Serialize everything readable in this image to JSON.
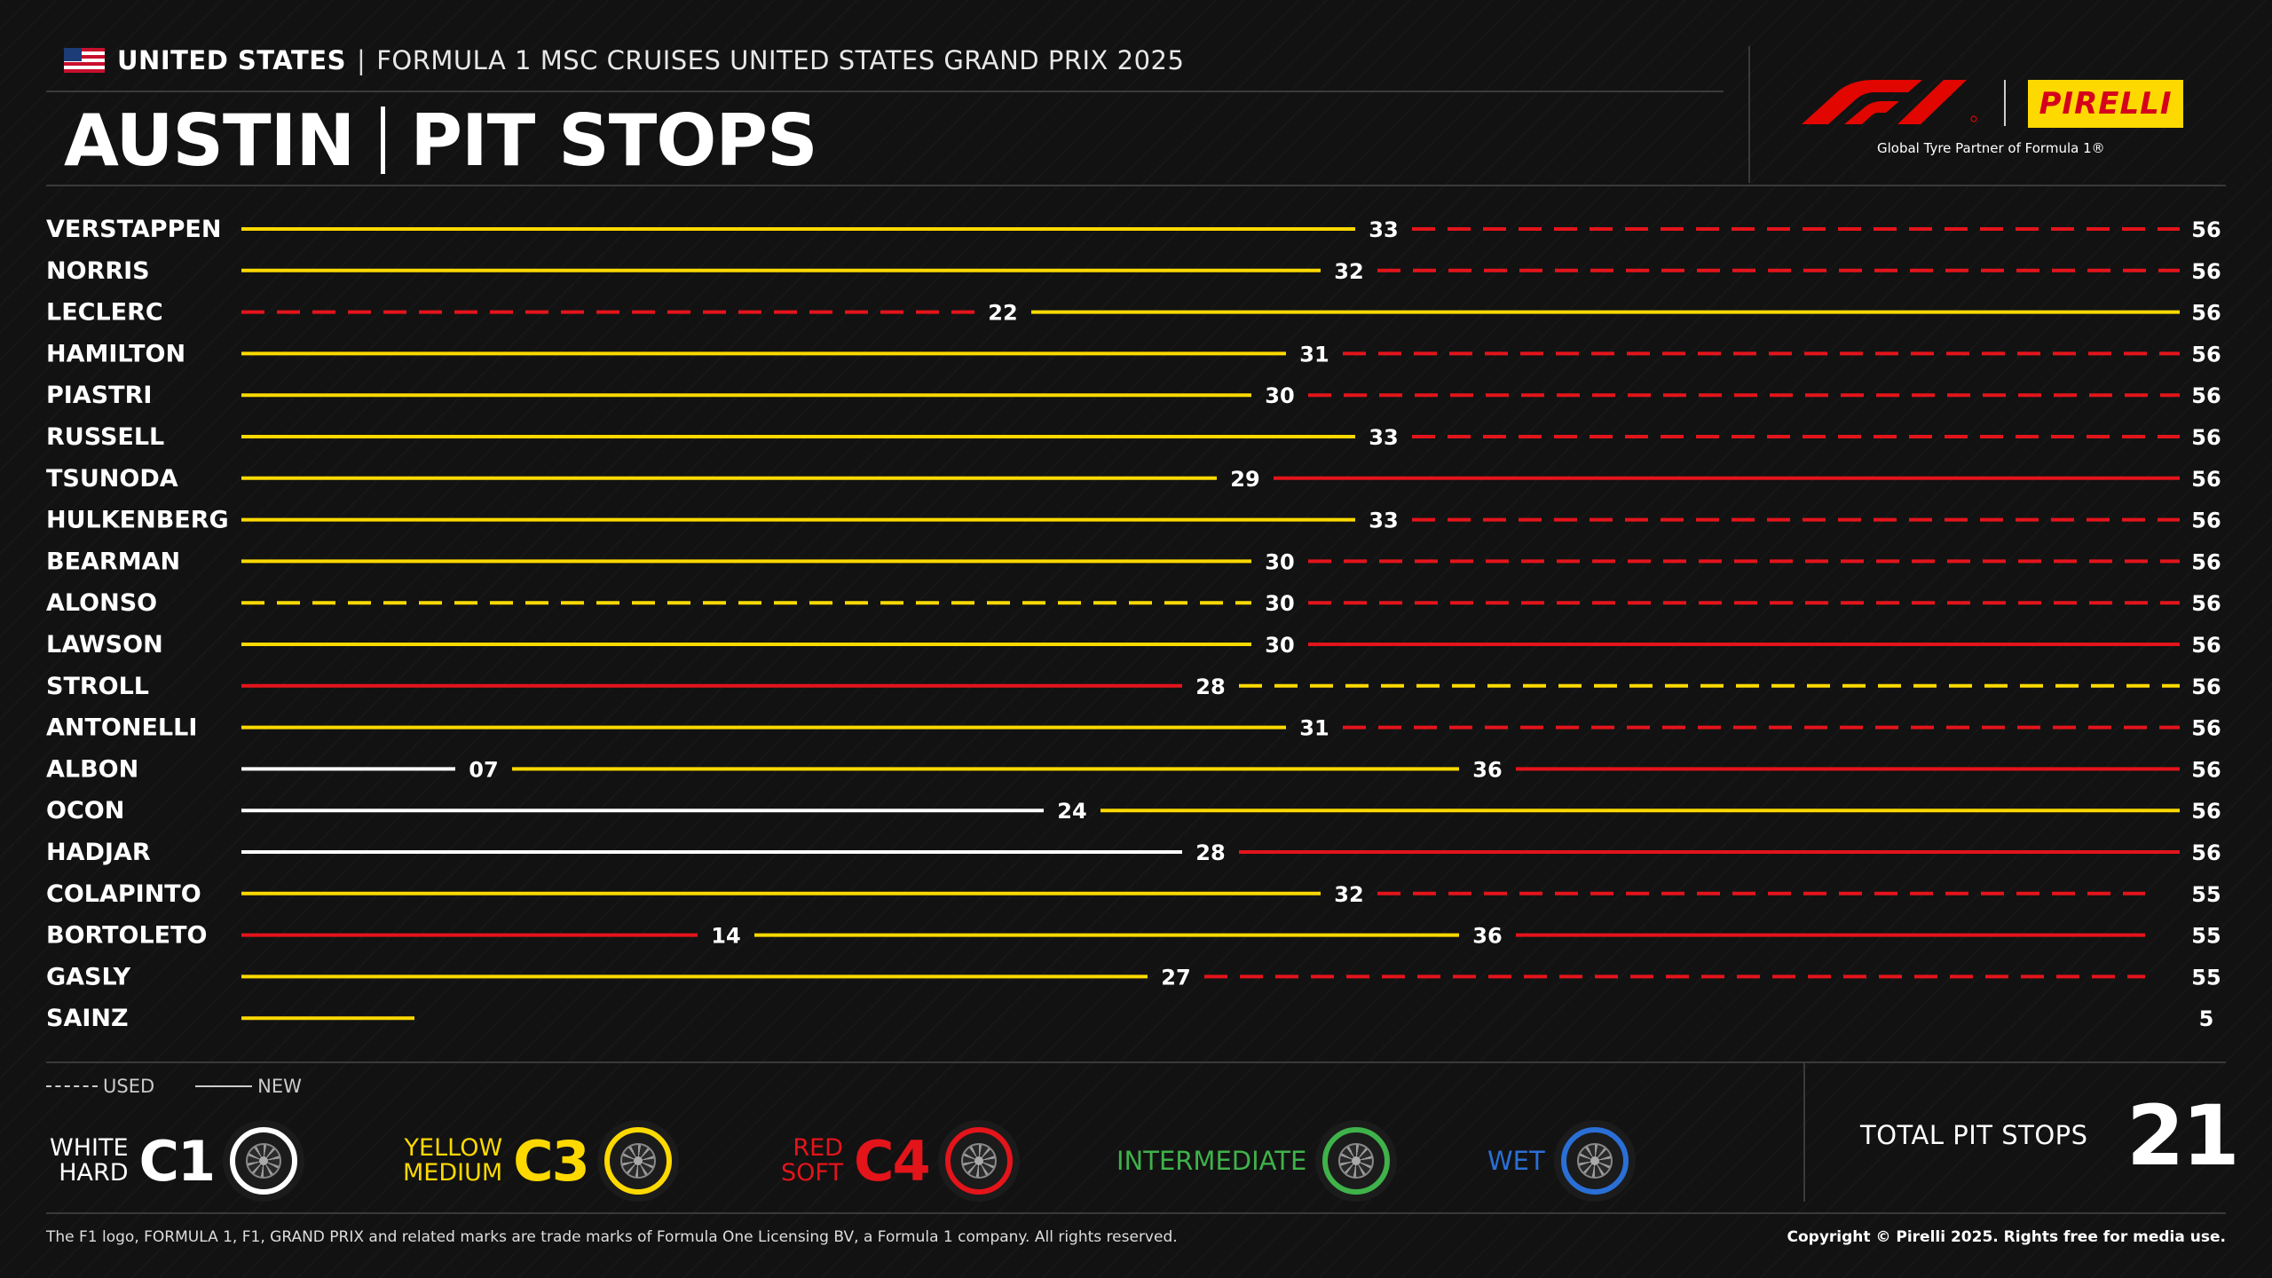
{
  "header": {
    "country": "UNITED STATES",
    "separator": "|",
    "event": "FORMULA 1 MSC CRUISES UNITED STATES GRAND PRIX 2025",
    "title_left": "AUSTIN",
    "title_right": "PIT STOPS"
  },
  "brand": {
    "pirelli": "PIRELLI",
    "tagline": "Global Tyre Partner of Formula 1®"
  },
  "colors": {
    "hard": "#ffffff",
    "medium": "#fdd900",
    "soft": "#e4141b",
    "intermediate": "#3fb24a",
    "wet": "#2a6fd6",
    "f1_red": "#e10600"
  },
  "chart_data": {
    "type": "bar",
    "title": "PIT STOPS",
    "x_range": [
      0,
      56
    ],
    "compound_colors": {
      "hard": "#ffffff",
      "medium": "#fdd900",
      "soft": "#e4141b"
    },
    "drivers": [
      {
        "name": "VERSTAPPEN",
        "stints": [
          {
            "compound": "medium",
            "used": false,
            "end": 33,
            "label": "33"
          },
          {
            "compound": "soft",
            "used": true,
            "end": 56,
            "label": "56"
          }
        ]
      },
      {
        "name": "NORRIS",
        "stints": [
          {
            "compound": "medium",
            "used": false,
            "end": 32,
            "label": "32"
          },
          {
            "compound": "soft",
            "used": true,
            "end": 56,
            "label": "56"
          }
        ]
      },
      {
        "name": "LECLERC",
        "stints": [
          {
            "compound": "soft",
            "used": true,
            "end": 22,
            "label": "22"
          },
          {
            "compound": "medium",
            "used": false,
            "end": 56,
            "label": "56"
          }
        ]
      },
      {
        "name": "HAMILTON",
        "stints": [
          {
            "compound": "medium",
            "used": false,
            "end": 31,
            "label": "31"
          },
          {
            "compound": "soft",
            "used": true,
            "end": 56,
            "label": "56"
          }
        ]
      },
      {
        "name": "PIASTRI",
        "stints": [
          {
            "compound": "medium",
            "used": false,
            "end": 30,
            "label": "30"
          },
          {
            "compound": "soft",
            "used": true,
            "end": 56,
            "label": "56"
          }
        ]
      },
      {
        "name": "RUSSELL",
        "stints": [
          {
            "compound": "medium",
            "used": false,
            "end": 33,
            "label": "33"
          },
          {
            "compound": "soft",
            "used": true,
            "end": 56,
            "label": "56"
          }
        ]
      },
      {
        "name": "TSUNODA",
        "stints": [
          {
            "compound": "medium",
            "used": false,
            "end": 29,
            "label": "29"
          },
          {
            "compound": "soft",
            "used": false,
            "end": 56,
            "label": "56"
          }
        ]
      },
      {
        "name": "HULKENBERG",
        "stints": [
          {
            "compound": "medium",
            "used": false,
            "end": 33,
            "label": "33"
          },
          {
            "compound": "soft",
            "used": true,
            "end": 56,
            "label": "56"
          }
        ]
      },
      {
        "name": "BEARMAN",
        "stints": [
          {
            "compound": "medium",
            "used": false,
            "end": 30,
            "label": "30"
          },
          {
            "compound": "soft",
            "used": true,
            "end": 56,
            "label": "56"
          }
        ]
      },
      {
        "name": "ALONSO",
        "stints": [
          {
            "compound": "medium",
            "used": true,
            "end": 30,
            "label": "30"
          },
          {
            "compound": "soft",
            "used": true,
            "end": 56,
            "label": "56"
          }
        ]
      },
      {
        "name": "LAWSON",
        "stints": [
          {
            "compound": "medium",
            "used": false,
            "end": 30,
            "label": "30"
          },
          {
            "compound": "soft",
            "used": false,
            "end": 56,
            "label": "56"
          }
        ]
      },
      {
        "name": "STROLL",
        "stints": [
          {
            "compound": "soft",
            "used": false,
            "end": 28,
            "label": "28"
          },
          {
            "compound": "medium",
            "used": true,
            "end": 56,
            "label": "56"
          }
        ]
      },
      {
        "name": "ANTONELLI",
        "stints": [
          {
            "compound": "medium",
            "used": false,
            "end": 31,
            "label": "31"
          },
          {
            "compound": "soft",
            "used": true,
            "end": 56,
            "label": "56"
          }
        ]
      },
      {
        "name": "ALBON",
        "stints": [
          {
            "compound": "hard",
            "used": false,
            "end": 7,
            "label": "07"
          },
          {
            "compound": "medium",
            "used": false,
            "end": 36,
            "label": "36"
          },
          {
            "compound": "soft",
            "used": false,
            "end": 56,
            "label": "56"
          }
        ]
      },
      {
        "name": "OCON",
        "stints": [
          {
            "compound": "hard",
            "used": false,
            "end": 24,
            "label": "24"
          },
          {
            "compound": "medium",
            "used": false,
            "end": 56,
            "label": "56"
          }
        ]
      },
      {
        "name": "HADJAR",
        "stints": [
          {
            "compound": "hard",
            "used": false,
            "end": 28,
            "label": "28"
          },
          {
            "compound": "soft",
            "used": false,
            "end": 56,
            "label": "56"
          }
        ]
      },
      {
        "name": "COLAPINTO",
        "stints": [
          {
            "compound": "medium",
            "used": false,
            "end": 32,
            "label": "32"
          },
          {
            "compound": "soft",
            "used": true,
            "end": 55,
            "label": "55"
          }
        ]
      },
      {
        "name": "BORTOLETO",
        "stints": [
          {
            "compound": "soft",
            "used": false,
            "end": 14,
            "label": "14"
          },
          {
            "compound": "medium",
            "used": false,
            "end": 36,
            "label": "36"
          },
          {
            "compound": "soft",
            "used": false,
            "end": 55,
            "label": "55"
          }
        ]
      },
      {
        "name": "GASLY",
        "stints": [
          {
            "compound": "medium",
            "used": false,
            "end": 27,
            "label": "27"
          },
          {
            "compound": "soft",
            "used": true,
            "end": 55,
            "label": "55"
          }
        ]
      },
      {
        "name": "SAINZ",
        "stints": [
          {
            "compound": "medium",
            "used": false,
            "end": 5,
            "label": "5"
          }
        ]
      }
    ]
  },
  "legend": {
    "used": "USED",
    "new": "NEW",
    "compounds": [
      {
        "name_line1": "WHITE",
        "name_line2": "HARD",
        "code": "C1",
        "color": "#ffffff"
      },
      {
        "name_line1": "YELLOW",
        "name_line2": "MEDIUM",
        "code": "C3",
        "color": "#fdd900"
      },
      {
        "name_line1": "RED",
        "name_line2": "SOFT",
        "code": "C4",
        "color": "#e4141b"
      },
      {
        "label": "INTERMEDIATE",
        "color": "#3fb24a"
      },
      {
        "label": "WET",
        "color": "#2a6fd6"
      }
    ]
  },
  "total": {
    "label": "TOTAL PIT STOPS",
    "value": "21"
  },
  "footer": {
    "disclaimer": "The F1 logo, FORMULA 1, F1, GRAND PRIX and related marks are trade marks of Formula One Licensing BV, a Formula 1 company. All rights reserved.",
    "copyright": "Copyright © Pirelli 2025. Rights free for media use."
  }
}
